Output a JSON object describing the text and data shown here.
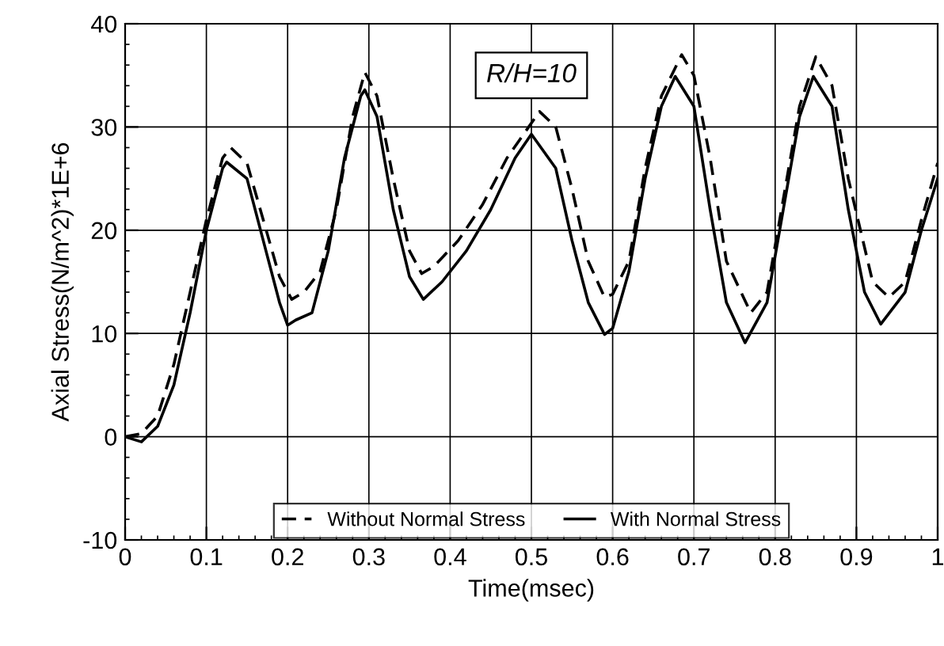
{
  "chart_data": {
    "type": "line",
    "xlabel": "Time(msec)",
    "ylabel": "Axial Stress(N/m^2)*1E+6",
    "annotations": [
      "R/H=10"
    ],
    "xlim": [
      0,
      1
    ],
    "xticks": [
      0,
      0.1,
      0.2,
      0.3,
      0.4,
      0.5,
      0.6,
      0.7,
      0.8,
      0.9,
      1
    ],
    "ylim": [
      -10,
      40
    ],
    "yticks": [
      -10,
      0,
      10,
      20,
      30,
      40
    ],
    "grid": true,
    "legend": "bottom",
    "series": [
      {
        "name": "Without Normal Stress",
        "color": "#000000",
        "line_style": "dashed",
        "x": [
          0,
          0.02,
          0.04,
          0.06,
          0.08,
          0.1,
          0.12,
          0.13,
          0.15,
          0.17,
          0.19,
          0.205,
          0.22,
          0.24,
          0.26,
          0.28,
          0.295,
          0.31,
          0.33,
          0.35,
          0.365,
          0.38,
          0.41,
          0.44,
          0.47,
          0.51,
          0.53,
          0.55,
          0.57,
          0.59,
          0.6,
          0.62,
          0.64,
          0.66,
          0.685,
          0.7,
          0.72,
          0.74,
          0.77,
          0.79,
          0.81,
          0.83,
          0.85,
          0.87,
          0.89,
          0.92,
          0.94,
          0.96,
          0.98,
          1.0
        ],
        "values": [
          0,
          0.3,
          2,
          7,
          14,
          21,
          27,
          28,
          26.5,
          21,
          15.5,
          13.3,
          14,
          16,
          22,
          31,
          35.3,
          33,
          25,
          18,
          15.8,
          16.5,
          19,
          22.5,
          27,
          31.5,
          30,
          24,
          17,
          13.5,
          13.8,
          17,
          26,
          33,
          37,
          35,
          27,
          17,
          12,
          14,
          23,
          32,
          36.8,
          34,
          25,
          15,
          13.5,
          15,
          21,
          26.5
        ]
      },
      {
        "name": "With Normal Stress",
        "color": "#000000",
        "line_style": "solid",
        "x": [
          0,
          0.02,
          0.04,
          0.06,
          0.08,
          0.1,
          0.12,
          0.125,
          0.15,
          0.17,
          0.19,
          0.2,
          0.21,
          0.23,
          0.25,
          0.27,
          0.29,
          0.295,
          0.31,
          0.33,
          0.35,
          0.367,
          0.39,
          0.42,
          0.45,
          0.48,
          0.5,
          0.53,
          0.55,
          0.57,
          0.59,
          0.6,
          0.62,
          0.64,
          0.66,
          0.677,
          0.7,
          0.72,
          0.74,
          0.763,
          0.79,
          0.81,
          0.83,
          0.847,
          0.87,
          0.89,
          0.91,
          0.93,
          0.96,
          0.98,
          1.0
        ],
        "values": [
          0,
          -0.5,
          1,
          5,
          12,
          20,
          26,
          26.6,
          25,
          19,
          13,
          10.8,
          11.3,
          12,
          18,
          27,
          33,
          33.6,
          31,
          22,
          15.5,
          13.3,
          15,
          18,
          22,
          27,
          29.3,
          26,
          19,
          13,
          9.9,
          10.5,
          16,
          25,
          32,
          34.9,
          32,
          22,
          13,
          9.1,
          13,
          22,
          31,
          34.9,
          32,
          22,
          14,
          10.9,
          14,
          20,
          25
        ]
      }
    ]
  }
}
